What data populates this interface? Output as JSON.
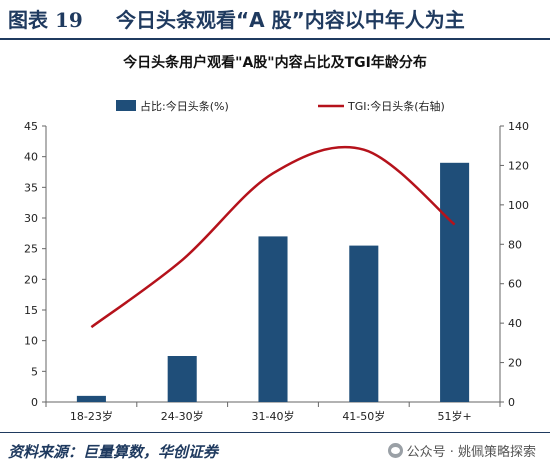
{
  "figure": {
    "number": "图表 19",
    "title": "今日头条观看“A 股”内容以中年人为主"
  },
  "source": "资料来源：巨量算数，华创证券",
  "watermark": {
    "icon": "wechat-icon",
    "text": "公众号 · 姚佩策略探索"
  },
  "colors": {
    "bar": "#1f4e79",
    "line": "#b5121b",
    "header": "#1f3a5f"
  },
  "chart_data": {
    "type": "bar",
    "title": "今日头条用户观看\"A股\"内容占比及TGI年龄分布",
    "categories": [
      "18-23岁",
      "24-30岁",
      "31-40岁",
      "41-50岁",
      "51岁+"
    ],
    "series": [
      {
        "name": "占比:今日头条(%)",
        "type": "bar",
        "axis": "left",
        "values": [
          1,
          7.5,
          27,
          25.5,
          39
        ]
      },
      {
        "name": "TGI:今日头条(右轴)",
        "type": "line",
        "axis": "right",
        "values": [
          38,
          72,
          116,
          128,
          90
        ]
      }
    ],
    "ylim": [
      0,
      45
    ],
    "yticks": [
      0,
      5,
      10,
      15,
      20,
      25,
      30,
      35,
      40,
      45
    ],
    "y2lim": [
      0,
      140
    ],
    "y2ticks": [
      0,
      20,
      40,
      60,
      80,
      100,
      120,
      140
    ],
    "legend": "top",
    "grid": false
  }
}
